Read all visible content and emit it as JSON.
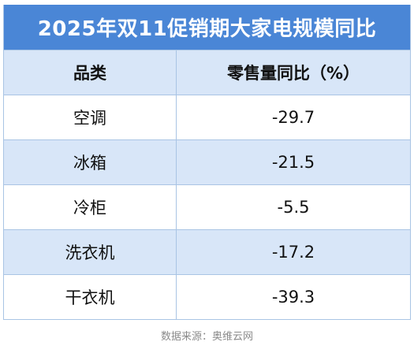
{
  "chart_data": {
    "type": "table",
    "title": "2025年双11促销期大家电规模同比",
    "columns": [
      "品类",
      "零售量同比（%）"
    ],
    "rows": [
      {
        "category": "空调",
        "value": "-29.7"
      },
      {
        "category": "冰箱",
        "value": "-21.5"
      },
      {
        "category": "冷柜",
        "value": "-5.5"
      },
      {
        "category": "洗衣机",
        "value": "-17.2"
      },
      {
        "category": "干衣机",
        "value": "-39.3"
      }
    ]
  },
  "source": "数据来源：奥维云网",
  "colors": {
    "header_bg": "#4a86d6",
    "stripe_bg": "#d8e6f8",
    "border": "#a9c4e4"
  }
}
